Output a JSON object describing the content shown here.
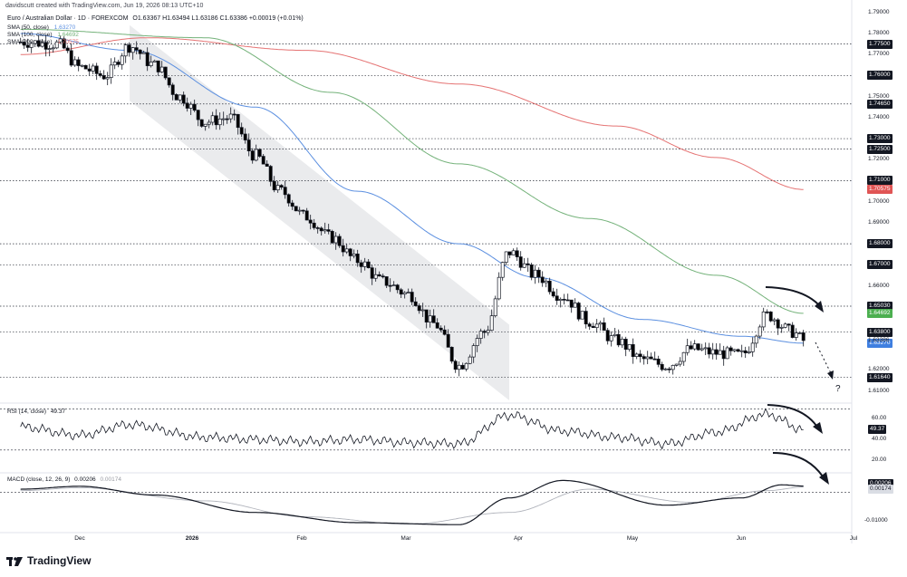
{
  "header": {
    "attribution": "davidscutt created with TradingView.com, Jun 19, 2026 08:13 UTC+10",
    "symbol": "Euro / Australian Dollar · 1D · FOREXCOM",
    "ohlc": "O1.63367  H1.63494  L1.63186  C1.63386  +0.00019 (+0.01%)"
  },
  "legend": {
    "sma50_label": "SMA (50, close)",
    "sma50_value": "1.63270",
    "sma100_label": "SMA (100, close)",
    "sma100_value": "1.64692",
    "sma200_label": "SMA (200, close)",
    "sma200_value": "1.70575"
  },
  "colors": {
    "up_candle": "#ffffff",
    "down_candle": "#000000",
    "sma50": "#5b8fe0",
    "sma100": "#74b27a",
    "sma200": "#e57373",
    "rsi_line": "#131722",
    "macd_line": "#131722",
    "signal_line": "#b0b3bb",
    "channel_fill": "#e6e7ea"
  },
  "price_axis": {
    "ticks": [
      "1.79000",
      "1.78000",
      "1.77000",
      "1.75000",
      "1.74000",
      "1.72000",
      "1.71000",
      "1.70000",
      "1.69000",
      "1.66000",
      "1.62000",
      "1.61000"
    ],
    "level_tags": [
      {
        "label": "1.77500",
        "style": "dark"
      },
      {
        "label": "1.76000",
        "style": "dark"
      },
      {
        "label": "1.74650",
        "style": "dark"
      },
      {
        "label": "1.73000",
        "style": "dark"
      },
      {
        "label": "1.72500",
        "style": "dark"
      },
      {
        "label": "1.71000",
        "style": "dark"
      },
      {
        "label": "1.68000",
        "style": "dark"
      },
      {
        "label": "1.67000",
        "style": "dark"
      },
      {
        "label": "1.65030",
        "style": "dark"
      },
      {
        "label": "1.63800",
        "style": "dark"
      },
      {
        "label": "1.61640",
        "style": "dark"
      },
      {
        "label": "1.70575",
        "style": "red"
      },
      {
        "label": "1.64692",
        "style": "green"
      },
      {
        "label": "1.63270",
        "style": "blue"
      }
    ],
    "last_price": "1.63386"
  },
  "rsi": {
    "label": "RSI (14, close)",
    "value": "49.37",
    "ticks": [
      "60.00",
      "40.00",
      "20.00"
    ]
  },
  "macd": {
    "label": "MACD (close, 12, 26, 9)",
    "macd_value": "0.00206",
    "signal_value": "0.00174",
    "ticks": [
      "-0.01000"
    ]
  },
  "x_axis": [
    "Dec",
    "2026",
    "Feb",
    "Mar",
    "Apr",
    "May",
    "Jun",
    "Jul"
  ],
  "annotation_question": "?",
  "brand": "TradingView",
  "chart_data": {
    "type": "candlestick",
    "instrument": "EUR/AUD",
    "timeframe": "1D",
    "price_ylim": [
      1.6055,
      1.7925
    ],
    "price_series_approx": [
      {
        "x": "Nov 15",
        "close": 1.776
      },
      {
        "x": "Nov 25",
        "close": 1.775
      },
      {
        "x": "Dec 1",
        "close": 1.764
      },
      {
        "x": "Dec 8",
        "close": 1.76
      },
      {
        "x": "Dec 15",
        "close": 1.774
      },
      {
        "x": "Dec 22",
        "close": 1.765
      },
      {
        "x": "Dec 29",
        "close": 1.75
      },
      {
        "x": "Jan 5",
        "close": 1.738
      },
      {
        "x": "Jan 12",
        "close": 1.74
      },
      {
        "x": "Jan 19",
        "close": 1.722
      },
      {
        "x": "Jan 26",
        "close": 1.705
      },
      {
        "x": "Feb 2",
        "close": 1.693
      },
      {
        "x": "Feb 9",
        "close": 1.683
      },
      {
        "x": "Feb 16",
        "close": 1.672
      },
      {
        "x": "Feb 23",
        "close": 1.662
      },
      {
        "x": "Mar 2",
        "close": 1.656
      },
      {
        "x": "Mar 9",
        "close": 1.642
      },
      {
        "x": "Mar 16",
        "close": 1.622
      },
      {
        "x": "Mar 23",
        "close": 1.638
      },
      {
        "x": "Mar 30",
        "close": 1.676
      },
      {
        "x": "Apr 6",
        "close": 1.665
      },
      {
        "x": "Apr 13",
        "close": 1.655
      },
      {
        "x": "Apr 20",
        "close": 1.643
      },
      {
        "x": "Apr 27",
        "close": 1.634
      },
      {
        "x": "May 4",
        "close": 1.625
      },
      {
        "x": "May 11",
        "close": 1.622
      },
      {
        "x": "May 18",
        "close": 1.63
      },
      {
        "x": "May 25",
        "close": 1.628
      },
      {
        "x": "Jun 1",
        "close": 1.627
      },
      {
        "x": "Jun 8",
        "close": 1.646
      },
      {
        "x": "Jun 15",
        "close": 1.638
      },
      {
        "x": "Jun 18",
        "close": 1.6339
      }
    ],
    "sma50_approx": [
      {
        "x": "Nov 15",
        "y": 1.78
      },
      {
        "x": "Dec 15",
        "y": 1.772
      },
      {
        "x": "Jan 19",
        "y": 1.745
      },
      {
        "x": "Feb 16",
        "y": 1.705
      },
      {
        "x": "Mar 16",
        "y": 1.68
      },
      {
        "x": "Apr 6",
        "y": 1.664
      },
      {
        "x": "May 4",
        "y": 1.644
      },
      {
        "x": "Jun 1",
        "y": 1.636
      },
      {
        "x": "Jun 18",
        "y": 1.6327
      }
    ],
    "sma100_approx": [
      {
        "x": "Nov 15",
        "y": 1.782
      },
      {
        "x": "Jan 5",
        "y": 1.778
      },
      {
        "x": "Feb 9",
        "y": 1.752
      },
      {
        "x": "Mar 16",
        "y": 1.718
      },
      {
        "x": "Apr 20",
        "y": 1.692
      },
      {
        "x": "May 25",
        "y": 1.665
      },
      {
        "x": "Jun 18",
        "y": 1.6469
      }
    ],
    "sma200_approx": [
      {
        "x": "Nov 15",
        "y": 1.77
      },
      {
        "x": "Dec 20",
        "y": 1.778
      },
      {
        "x": "Feb 2",
        "y": 1.772
      },
      {
        "x": "Mar 16",
        "y": 1.756
      },
      {
        "x": "Apr 27",
        "y": 1.736
      },
      {
        "x": "May 25",
        "y": 1.721
      },
      {
        "x": "Jun 18",
        "y": 1.7058
      }
    ],
    "horizontal_levels": [
      1.775,
      1.76,
      1.7465,
      1.73,
      1.725,
      1.71,
      1.68,
      1.67,
      1.6503,
      1.638,
      1.6164
    ],
    "rsi_ylim": [
      10,
      72
    ],
    "rsi_approx": [
      {
        "x": "Nov 15",
        "y": 52
      },
      {
        "x": "Dec 1",
        "y": 44
      },
      {
        "x": "Dec 15",
        "y": 54
      },
      {
        "x": "Jan 5",
        "y": 42
      },
      {
        "x": "Jan 19",
        "y": 40
      },
      {
        "x": "Feb 2",
        "y": 38
      },
      {
        "x": "Feb 16",
        "y": 40
      },
      {
        "x": "Mar 2",
        "y": 37
      },
      {
        "x": "Mar 16",
        "y": 36
      },
      {
        "x": "Mar 30",
        "y": 63
      },
      {
        "x": "Apr 13",
        "y": 48
      },
      {
        "x": "Apr 27",
        "y": 42
      },
      {
        "x": "May 11",
        "y": 36
      },
      {
        "x": "May 25",
        "y": 47
      },
      {
        "x": "Jun 8",
        "y": 64
      },
      {
        "x": "Jun 18",
        "y": 49.37
      }
    ],
    "macd_ylim": [
      -0.013,
      0.006
    ],
    "macd_approx": [
      {
        "x": "Nov 15",
        "y": 0.001
      },
      {
        "x": "Dec 1",
        "y": 0.002
      },
      {
        "x": "Dec 22",
        "y": -0.001
      },
      {
        "x": "Jan 19",
        "y": -0.007
      },
      {
        "x": "Feb 16",
        "y": -0.0105
      },
      {
        "x": "Mar 16",
        "y": -0.0112
      },
      {
        "x": "Mar 30",
        "y": -0.002
      },
      {
        "x": "Apr 13",
        "y": 0.004
      },
      {
        "x": "May 11",
        "y": -0.0045
      },
      {
        "x": "Jun 1",
        "y": -0.002
      },
      {
        "x": "Jun 12",
        "y": 0.0025
      },
      {
        "x": "Jun 18",
        "y": 0.00206
      }
    ],
    "signal_approx": [
      {
        "x": "Nov 15",
        "y": 0.0005
      },
      {
        "x": "Dec 1",
        "y": 0.0015
      },
      {
        "x": "Jan 5",
        "y": -0.003
      },
      {
        "x": "Feb 2",
        "y": -0.0085
      },
      {
        "x": "Mar 2",
        "y": -0.011
      },
      {
        "x": "Mar 30",
        "y": -0.007
      },
      {
        "x": "Apr 20",
        "y": 0.001
      },
      {
        "x": "May 18",
        "y": -0.0035
      },
      {
        "x": "Jun 8",
        "y": 0.0005
      },
      {
        "x": "Jun 18",
        "y": 0.00174
      }
    ]
  }
}
